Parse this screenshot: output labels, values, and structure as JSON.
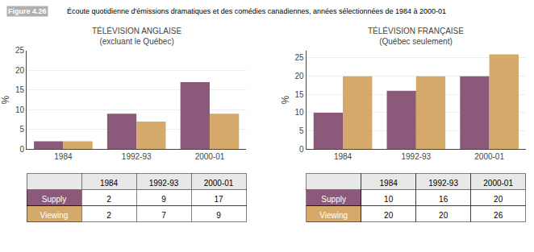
{
  "title": "Écoute quotidienne d'émissions dramatiques et des comédies canadiennes, années sélectionnées de 1984 à 2000-01",
  "annotations": [
    "Figure 4.26"
  ],
  "chart_data": [
    {
      "type": "bar",
      "title": "TÉLÉVISION ANGLAISE",
      "subtitle": "(excluant le Québec)",
      "categories": [
        "1984",
        "1992-93",
        "2000-01"
      ],
      "series": [
        {
          "name": "Supply",
          "color": "#8B5A7A",
          "values": [
            2,
            9,
            17
          ]
        },
        {
          "name": "Viewing",
          "color": "#D4A96A",
          "values": [
            2,
            7,
            9
          ]
        }
      ],
      "ylabel": "%",
      "ylim": [
        0,
        25
      ],
      "yticks": [
        0,
        5,
        10,
        15,
        20,
        25
      ],
      "grid": true
    },
    {
      "type": "bar",
      "title": "TÉLÉVISION FRANÇAISE",
      "subtitle": "(Québec seulement)",
      "categories": [
        "1984",
        "1992-93",
        "2000-01"
      ],
      "series": [
        {
          "name": "Supply",
          "color": "#8B5A7A",
          "values": [
            10,
            16,
            20
          ]
        },
        {
          "name": "Viewing",
          "color": "#D4A96A",
          "values": [
            20,
            20,
            26
          ]
        }
      ],
      "ylabel": "%",
      "ylim": [
        0,
        27
      ],
      "yticks": [
        0,
        5,
        10,
        15,
        20,
        25
      ],
      "grid": true
    }
  ]
}
